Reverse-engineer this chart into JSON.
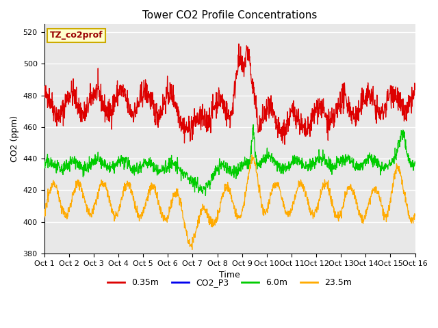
{
  "title": "Tower CO2 Profile Concentrations",
  "xlabel": "Time",
  "ylabel": "CO2 (ppm)",
  "ylim": [
    380,
    525
  ],
  "yticks": [
    380,
    400,
    420,
    440,
    460,
    480,
    500,
    520
  ],
  "xtick_labels": [
    "Oct 1",
    "Oct 2",
    "Oct 3",
    "Oct 4",
    "Oct 5",
    "Oct 6",
    "Oct 7",
    "Oct 8",
    "Oct 9",
    "Oct 10",
    "Oct 11",
    "Oct 12",
    "Oct 13",
    "Oct 14",
    "Oct 15",
    "Oct 16"
  ],
  "annotation_text": "TZ_co2prof",
  "annotation_color": "#990000",
  "annotation_bg": "#ffffcc",
  "annotation_border": "#ccaa00",
  "colors": {
    "0.35m": "#dd0000",
    "CO2_P3": "#0000ee",
    "6.0m": "#00cc00",
    "23.5m": "#ffaa00"
  },
  "legend_labels": [
    "0.35m",
    "CO2_P3",
    "6.0m",
    "23.5m"
  ],
  "background_plot": "#e8e8e8",
  "background_fig": "#ffffff",
  "grid_color": "#ffffff",
  "title_fontsize": 11,
  "axis_fontsize": 9,
  "tick_fontsize": 8
}
